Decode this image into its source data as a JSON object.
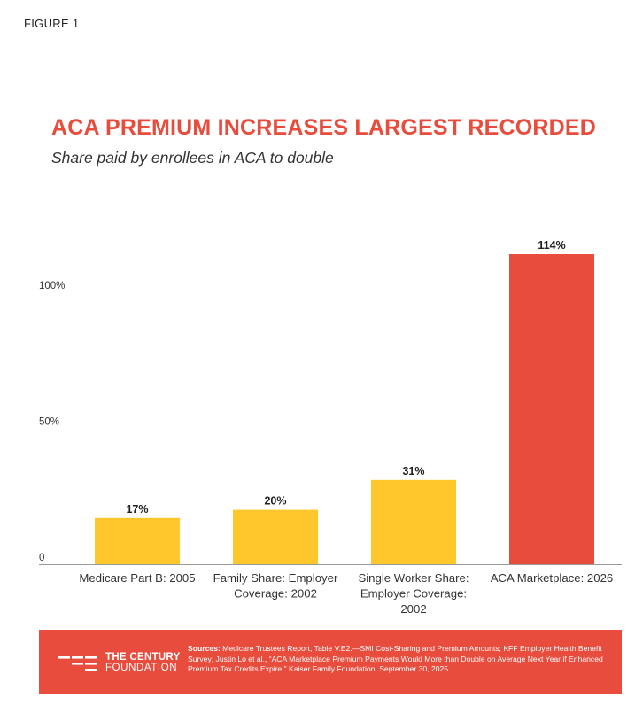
{
  "figure_label": "FIGURE 1",
  "title": "ACA PREMIUM INCREASES LARGEST RECORDED",
  "subtitle": "Share paid by enrollees in ACA to double",
  "colors": {
    "accent": "#e84c3d",
    "bar_default": "#ffc72c",
    "bar_highlight": "#e84c3d",
    "axis": "#999999"
  },
  "chart_data": {
    "type": "bar",
    "title": "ACA PREMIUM INCREASES LARGEST RECORDED",
    "subtitle": "Share paid by enrollees in ACA to double",
    "categories": [
      [
        "Medicare Part B: 2005"
      ],
      [
        "Family Share: Employer",
        "Coverage: 2002"
      ],
      [
        "Single Worker Share:",
        "Employer Coverage:",
        "2002"
      ],
      [
        "ACA Marketplace: 2026"
      ]
    ],
    "values": [
      17,
      20,
      31,
      114
    ],
    "value_labels": [
      "17%",
      "20%",
      "31%",
      "114%"
    ],
    "highlight_index": 3,
    "yticks": [
      0,
      50,
      100
    ],
    "ytick_labels": [
      "0",
      "50%",
      "100%"
    ],
    "ylim": [
      0,
      114
    ],
    "xlabel": "",
    "ylabel": "",
    "grid": false,
    "legend": "none"
  },
  "footer": {
    "logo_line1": "THE CENTURY",
    "logo_line2": "FOUNDATION",
    "sources_label": "Sources:",
    "sources_text": "Medicare Trustees Report, Table V.E2.—SMI Cost-Sharing and Premium Amounts; KFF Employer Health Benefit Survey; Justin Lo et al., “ACA Marketplace Premium Payments Would More than Double on Average Next Year if Enhanced Premium Tax Credits Expire,” Kaiser Family Foundation, September 30, 2025."
  }
}
